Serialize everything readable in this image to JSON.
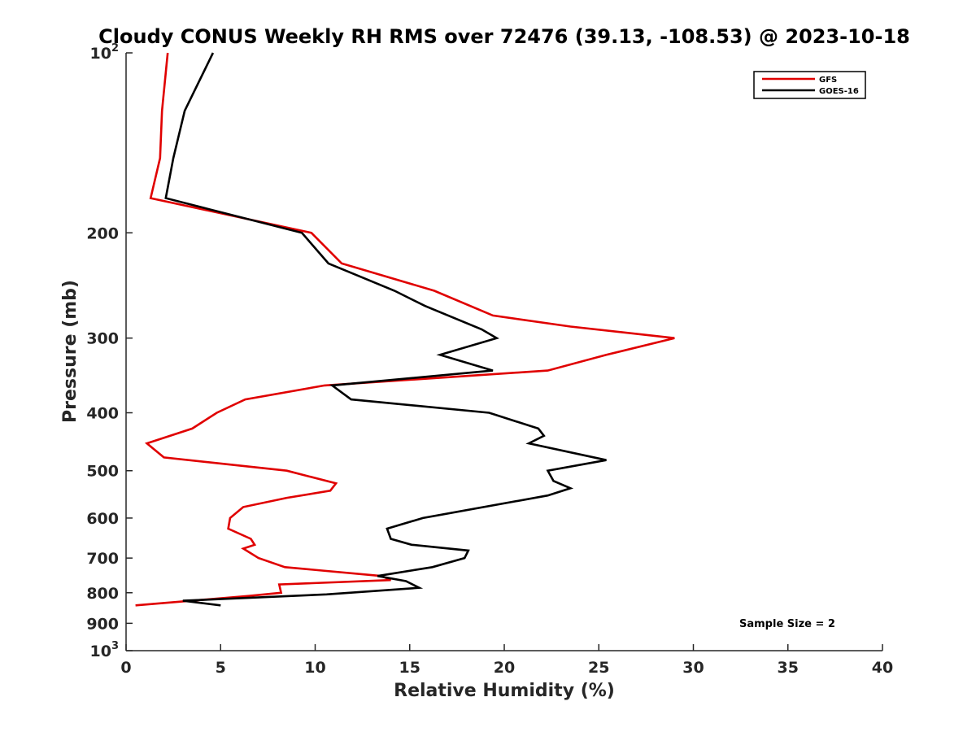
{
  "chart_data": {
    "type": "line",
    "title": "Cloudy CONUS Weekly RH RMS over 72476 (39.13, -108.53) @ 2023-10-18",
    "xlabel": "Relative Humidity (%)",
    "ylabel": "Pressure (mb)",
    "xlim": [
      0,
      40
    ],
    "ylim": [
      100,
      1000
    ],
    "y_scale": "log",
    "y_reversed": true,
    "grid": false,
    "legend_position": "top-right",
    "x_ticks": [
      0,
      5,
      10,
      15,
      20,
      25,
      30,
      35,
      40
    ],
    "x_tick_labels": [
      "0",
      "5",
      "10",
      "15",
      "20",
      "25",
      "30",
      "35",
      "40"
    ],
    "y_ticks": [
      100,
      200,
      300,
      400,
      500,
      600,
      700,
      800,
      900,
      1000
    ],
    "y_tick_labels": [
      {
        "base": "10",
        "sup": "2"
      },
      {
        "base": "200",
        "sup": ""
      },
      {
        "base": "300",
        "sup": ""
      },
      {
        "base": "400",
        "sup": ""
      },
      {
        "base": "500",
        "sup": ""
      },
      {
        "base": "600",
        "sup": ""
      },
      {
        "base": "700",
        "sup": ""
      },
      {
        "base": "800",
        "sup": ""
      },
      {
        "base": "900",
        "sup": ""
      },
      {
        "base": "10",
        "sup": "3"
      }
    ],
    "annotation": "Sample Size = 2",
    "series": [
      {
        "name": "GFS",
        "color": "#e00000",
        "points": [
          [
            2.2,
            100
          ],
          [
            1.9,
            125
          ],
          [
            1.8,
            150
          ],
          [
            1.3,
            175
          ],
          [
            9.8,
            200
          ],
          [
            11.4,
            225
          ],
          [
            16.3,
            250
          ],
          [
            19.4,
            275
          ],
          [
            23.5,
            287
          ],
          [
            29.0,
            300
          ],
          [
            25.4,
            320
          ],
          [
            22.3,
            340
          ],
          [
            10.5,
            360
          ],
          [
            6.3,
            380
          ],
          [
            4.8,
            400
          ],
          [
            3.5,
            425
          ],
          [
            1.1,
            450
          ],
          [
            2.0,
            475
          ],
          [
            8.5,
            500
          ],
          [
            11.1,
            525
          ],
          [
            10.8,
            540
          ],
          [
            8.5,
            555
          ],
          [
            6.2,
            575
          ],
          [
            5.5,
            600
          ],
          [
            5.4,
            625
          ],
          [
            6.6,
            650
          ],
          [
            6.8,
            665
          ],
          [
            6.2,
            675
          ],
          [
            7.0,
            700
          ],
          [
            8.4,
            725
          ],
          [
            13.5,
            750
          ],
          [
            14.0,
            762
          ],
          [
            8.1,
            775
          ],
          [
            8.2,
            800
          ],
          [
            6.5,
            810
          ],
          [
            0.5,
            840
          ]
        ]
      },
      {
        "name": "GOES-16",
        "color": "#000000",
        "points": [
          [
            4.6,
            100
          ],
          [
            3.1,
            125
          ],
          [
            2.5,
            150
          ],
          [
            2.1,
            175
          ],
          [
            9.3,
            200
          ],
          [
            10.7,
            225
          ],
          [
            14.2,
            250
          ],
          [
            15.8,
            265
          ],
          [
            18.8,
            290
          ],
          [
            19.6,
            300
          ],
          [
            16.6,
            320
          ],
          [
            19.4,
            340
          ],
          [
            10.9,
            360
          ],
          [
            11.9,
            380
          ],
          [
            19.2,
            400
          ],
          [
            21.8,
            425
          ],
          [
            22.1,
            437
          ],
          [
            21.3,
            450
          ],
          [
            25.4,
            480
          ],
          [
            22.3,
            500
          ],
          [
            22.6,
            520
          ],
          [
            23.5,
            535
          ],
          [
            22.3,
            550
          ],
          [
            15.7,
            600
          ],
          [
            13.8,
            625
          ],
          [
            14.0,
            650
          ],
          [
            15.1,
            665
          ],
          [
            18.1,
            680
          ],
          [
            17.9,
            700
          ],
          [
            16.2,
            725
          ],
          [
            13.3,
            750
          ],
          [
            14.8,
            765
          ],
          [
            15.5,
            785
          ],
          [
            10.6,
            805
          ],
          [
            3.0,
            825
          ],
          [
            5.0,
            840
          ]
        ]
      }
    ]
  }
}
